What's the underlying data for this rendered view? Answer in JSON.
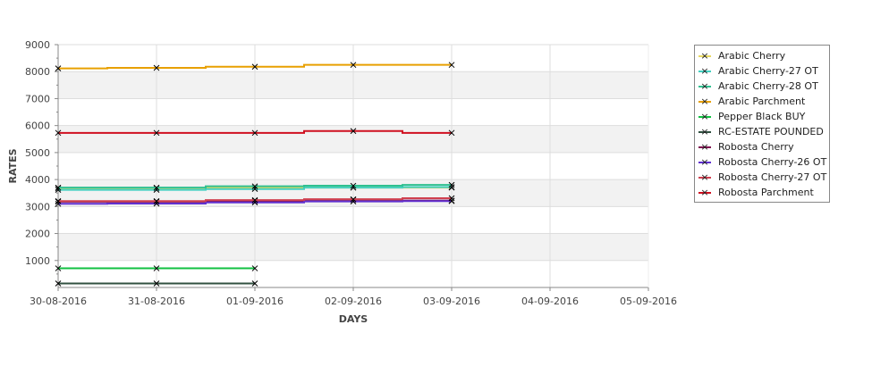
{
  "chart_data": {
    "type": "line",
    "title": "",
    "xlabel": "DAYS",
    "ylabel": "RATES",
    "ylim": [
      0,
      9000
    ],
    "yticks": [
      "1000",
      "2000",
      "3000",
      "4000",
      "5000",
      "6000",
      "7000",
      "8000",
      "9000"
    ],
    "xticks": [
      "30-08-2016",
      "31-08-2016",
      "01-09-2016",
      "02-09-2016",
      "03-09-2016",
      "04-09-2016",
      "05-09-2016"
    ],
    "legend_position": "right",
    "series": [
      {
        "name": "Arabic Cherry",
        "color": "#e8d860",
        "values": [
          3680,
          3680,
          3700,
          3700,
          3700
        ]
      },
      {
        "name": "Arabic Cherry-27 OT",
        "color": "#40d0c0",
        "values": [
          3620,
          3620,
          3650,
          3700,
          3720
        ]
      },
      {
        "name": "Arabic Cherry-28 OT",
        "color": "#30c090",
        "values": [
          3700,
          3700,
          3750,
          3770,
          3800
        ]
      },
      {
        "name": "Arabic Parchment",
        "color": "#e8a000",
        "values": [
          8120,
          8140,
          8180,
          8250,
          8250
        ]
      },
      {
        "name": "Pepper Black BUY",
        "color": "#10c040",
        "values": [
          710,
          710,
          710
        ]
      },
      {
        "name": "RC-ESTATE POUNDED",
        "color": "#305040",
        "values": [
          150,
          150,
          150
        ]
      },
      {
        "name": "Robosta Cherry",
        "color": "#801050",
        "values": [
          3180,
          3180,
          3200,
          3250,
          3220
        ]
      },
      {
        "name": "Robosta Cherry-26 OT",
        "color": "#6030d0",
        "values": [
          3100,
          3110,
          3150,
          3190,
          3200
        ]
      },
      {
        "name": "Robosta Cherry-27 OT",
        "color": "#d04050",
        "values": [
          3200,
          3200,
          3240,
          3270,
          3310
        ]
      },
      {
        "name": "Robosta Parchment",
        "color": "#d01020",
        "values": [
          5730,
          5730,
          5730,
          5800,
          5730
        ]
      }
    ]
  }
}
